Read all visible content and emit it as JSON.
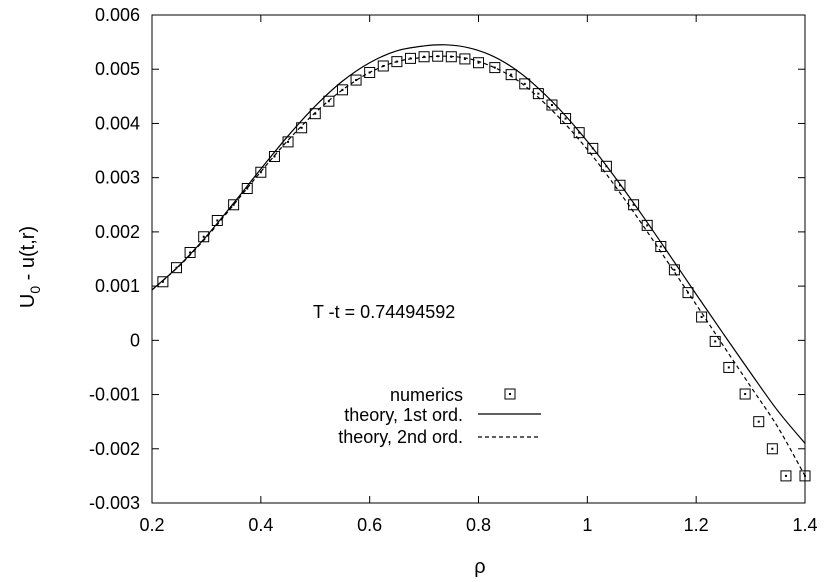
{
  "chart_data": {
    "type": "line",
    "title": "",
    "xlabel": "ρ",
    "ylabel_main": "U",
    "ylabel_sub": "0",
    "ylabel_rest": " - u(t,r)",
    "xlim": [
      0.2,
      1.4
    ],
    "ylim": [
      -0.003,
      0.006
    ],
    "x_ticks": [
      0.2,
      0.4,
      0.6,
      0.8,
      1.0,
      1.2,
      1.4
    ],
    "x_tick_labels": [
      "0.2",
      "0.4",
      "0.6",
      "0.8",
      "1",
      "1.2",
      "1.4"
    ],
    "y_ticks": [
      -0.003,
      -0.002,
      -0.001,
      0,
      0.001,
      0.002,
      0.003,
      0.004,
      0.005,
      0.006
    ],
    "y_tick_labels": [
      "-0.003",
      "-0.002",
      "-0.001",
      "0",
      "0.001",
      "0.002",
      "0.003",
      "0.004",
      "0.005",
      "0.006"
    ],
    "grid": false,
    "legend_position": "bottom-center",
    "annotation": "T -t = 0.74494592",
    "series": [
      {
        "name": "numerics",
        "style": "square-markers",
        "x": [
          0.22,
          0.245,
          0.27,
          0.295,
          0.32,
          0.35,
          0.375,
          0.4,
          0.425,
          0.45,
          0.475,
          0.5,
          0.525,
          0.55,
          0.575,
          0.6,
          0.625,
          0.65,
          0.675,
          0.7,
          0.725,
          0.75,
          0.775,
          0.8,
          0.83,
          0.86,
          0.885,
          0.91,
          0.935,
          0.96,
          0.985,
          1.01,
          1.035,
          1.06,
          1.085,
          1.11,
          1.135,
          1.16,
          1.185,
          1.21,
          1.235,
          1.26,
          1.29,
          1.315,
          1.34,
          1.365,
          1.4
        ],
        "y": [
          0.00108,
          0.00134,
          0.00162,
          0.00191,
          0.00221,
          0.0025,
          0.0028,
          0.0031,
          0.00339,
          0.00366,
          0.00392,
          0.00418,
          0.00441,
          0.00462,
          0.0048,
          0.00494,
          0.00506,
          0.00514,
          0.0052,
          0.00523,
          0.00524,
          0.00523,
          0.00519,
          0.00512,
          0.00503,
          0.0049,
          0.00473,
          0.00455,
          0.00434,
          0.00409,
          0.00383,
          0.00354,
          0.00321,
          0.00286,
          0.0025,
          0.00212,
          0.00173,
          0.0013,
          0.00088,
          0.00043,
          -2e-05,
          -0.0005,
          -0.00099,
          -0.0015,
          -0.002,
          -0.0025,
          -0.0025
        ]
      },
      {
        "name": "theory, 1st ord.",
        "style": "solid",
        "x": [
          0.2,
          0.25,
          0.3,
          0.35,
          0.4,
          0.45,
          0.5,
          0.55,
          0.6,
          0.65,
          0.7,
          0.74,
          0.78,
          0.82,
          0.86,
          0.9,
          0.95,
          1.0,
          1.05,
          1.1,
          1.15,
          1.2,
          1.25,
          1.3,
          1.35,
          1.4
        ],
        "y": [
          0.00093,
          0.00138,
          0.00192,
          0.00253,
          0.00316,
          0.00377,
          0.00432,
          0.00478,
          0.00512,
          0.00534,
          0.00543,
          0.00545,
          0.0054,
          0.00527,
          0.00505,
          0.00474,
          0.00425,
          0.00367,
          0.00302,
          0.00232,
          0.00159,
          0.00085,
          0.00012,
          -0.0006,
          -0.0013,
          -0.0019
        ]
      },
      {
        "name": "theory, 2nd ord.",
        "style": "dashed",
        "x": [
          0.2,
          0.25,
          0.3,
          0.35,
          0.4,
          0.45,
          0.5,
          0.55,
          0.6,
          0.65,
          0.7,
          0.74,
          0.78,
          0.82,
          0.86,
          0.9,
          0.95,
          1.0,
          1.05,
          1.1,
          1.15,
          1.2,
          1.25,
          1.3,
          1.35,
          1.4
        ],
        "y": [
          0.00093,
          0.00137,
          0.0019,
          0.0025,
          0.00311,
          0.00369,
          0.0042,
          0.00462,
          0.00494,
          0.00514,
          0.00522,
          0.00524,
          0.0052,
          0.00507,
          0.00487,
          0.00457,
          0.00409,
          0.00352,
          0.00286,
          0.00215,
          0.00141,
          0.00066,
          -0.0001,
          -0.00085,
          -0.0016,
          -0.0025
        ]
      }
    ]
  }
}
